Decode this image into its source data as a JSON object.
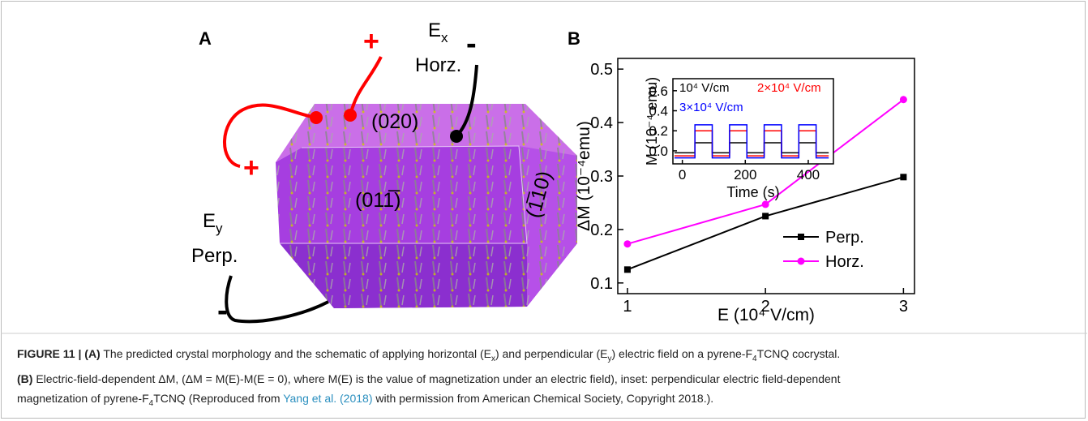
{
  "diagram": {
    "panel_label": "A",
    "plus_x": "+",
    "ex": {
      "text": "E",
      "sub": "x"
    },
    "horz": "Horz.",
    "minus_x": "-",
    "face_top": "(020)",
    "face_front": "(011̅)",
    "face_side": "(1̅10)",
    "plus_y": "+",
    "ey": {
      "text": "E",
      "sub": "y"
    },
    "perp": "Perp.",
    "minus_y": "-"
  },
  "chart_data": [
    {
      "type": "line",
      "panel_label": "B",
      "x_label": "E (10⁴ V/cm)",
      "y_label": "ΔM (10⁻⁴emu)",
      "x": [
        1,
        2,
        3
      ],
      "xlim": [
        0.93,
        3.08
      ],
      "xticks": [
        1,
        2,
        3
      ],
      "ylim": [
        0.08,
        0.52
      ],
      "yticks": [
        0.1,
        0.2,
        0.3,
        0.4,
        0.5
      ],
      "legend": "lower right",
      "series": [
        {
          "name": "Perp.",
          "color": "#000000",
          "marker": "square",
          "values": [
            0.125,
            0.225,
            0.298
          ]
        },
        {
          "name": "Horz.",
          "color": "#ff00ff",
          "marker": "circle",
          "values": [
            0.173,
            0.247,
            0.443
          ]
        }
      ]
    },
    {
      "type": "line",
      "x_label": "Time (s)",
      "y_label": "M (10⁻⁴ emu)",
      "x": [
        -25,
        40,
        40,
        95,
        95,
        150,
        150,
        205,
        205,
        260,
        260,
        315,
        315,
        370,
        370,
        425,
        425,
        465
      ],
      "xlim": [
        -30,
        480
      ],
      "xticks": [
        0,
        200,
        400
      ],
      "ylim": [
        -0.13,
        0.72
      ],
      "yticks": [
        {
          "value": 0,
          "label": "0.0"
        },
        0.2,
        0.4,
        0.6
      ],
      "legend": "upper left",
      "series": [
        {
          "name": "10⁴ V/cm",
          "color": "#000000",
          "values": [
            -0.02,
            -0.02,
            0.08,
            0.08,
            -0.02,
            -0.02,
            0.08,
            0.08,
            -0.02,
            -0.02,
            0.08,
            0.08,
            -0.02,
            -0.02,
            0.08,
            0.08,
            -0.02,
            -0.02
          ]
        },
        {
          "name": "2×10⁴ V/cm",
          "color": "#ff0000",
          "values": [
            -0.05,
            -0.05,
            0.2,
            0.2,
            -0.05,
            -0.05,
            0.2,
            0.2,
            -0.05,
            -0.05,
            0.2,
            0.2,
            -0.05,
            -0.05,
            0.2,
            0.2,
            -0.05,
            -0.05
          ]
        },
        {
          "name": "3×10⁴ V/cm",
          "color": "#0000ff",
          "values": [
            -0.07,
            -0.07,
            0.26,
            0.26,
            -0.07,
            -0.07,
            0.26,
            0.26,
            -0.07,
            -0.07,
            0.26,
            0.26,
            -0.07,
            -0.07,
            0.26,
            0.26,
            -0.07,
            -0.07
          ]
        }
      ]
    }
  ],
  "caption": {
    "lines": [
      [
        {
          "text": "FIGURE 11 | (A)",
          "style": "bold"
        },
        {
          "text": " The predicted crystal morphology and the schematic of applying horizontal (E"
        },
        {
          "text": "x",
          "style": "sub"
        },
        {
          "text": ") and perpendicular (E"
        },
        {
          "text": "y",
          "style": "sub"
        },
        {
          "text": ") electric field on a pyrene-F"
        },
        {
          "text": "4",
          "style": "sub"
        },
        {
          "text": "TCNQ cocrystal."
        }
      ],
      [
        {
          "text": "(B)",
          "style": "bold"
        },
        {
          "text": " Electric-field-dependent ΔM, (ΔM = M(E)-M(E = 0), where M(E) is the value of magnetization under an electric field), inset: perpendicular electric field-dependent"
        }
      ],
      [
        {
          "text": "magnetization of pyrene-F"
        },
        {
          "text": "4",
          "style": "sub"
        },
        {
          "text": "TCNQ (Reproduced from "
        },
        {
          "text": "Yang et al. (2018)",
          "style": "link"
        },
        {
          "text": " with permission from American Chemical Society, Copyright 2018.)."
        }
      ]
    ]
  }
}
